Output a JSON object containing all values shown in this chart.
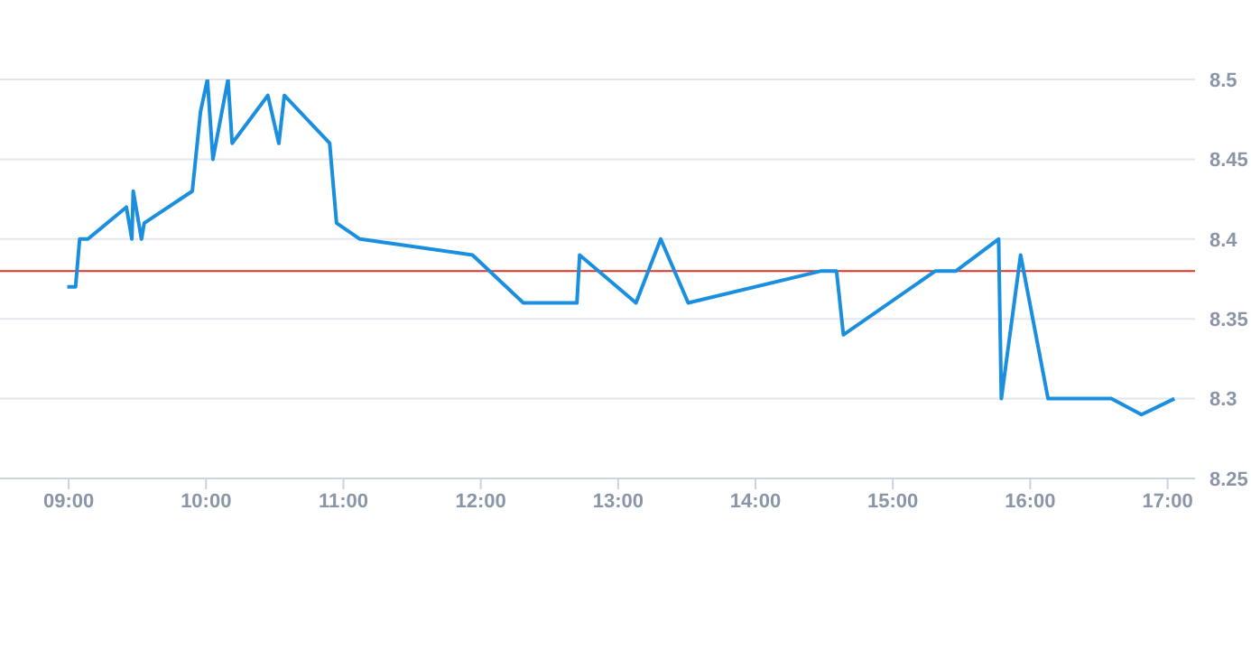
{
  "chart_data": {
    "type": "line",
    "x": [
      8.99,
      9.05,
      9.08,
      9.14,
      9.42,
      9.46,
      9.47,
      9.53,
      9.55,
      9.9,
      9.96,
      10.01,
      10.05,
      10.16,
      10.19,
      10.45,
      10.53,
      10.57,
      10.9,
      10.95,
      11.12,
      11.94,
      12.31,
      12.7,
      12.72,
      13.13,
      13.31,
      13.51,
      14.48,
      14.59,
      14.64,
      15.31,
      15.46,
      15.77,
      15.79,
      15.93,
      16.13,
      16.59,
      16.81,
      17.05
    ],
    "series": [
      {
        "color": "#1a8fdf",
        "values": [
          8.37,
          8.37,
          8.4,
          8.4,
          8.42,
          8.4,
          8.43,
          8.4,
          8.41,
          8.43,
          8.48,
          8.5,
          8.45,
          8.5,
          8.46,
          8.49,
          8.46,
          8.49,
          8.46,
          8.41,
          8.4,
          8.39,
          8.36,
          8.36,
          8.39,
          8.36,
          8.4,
          8.36,
          8.38,
          8.38,
          8.34,
          8.38,
          8.38,
          8.4,
          8.3,
          8.39,
          8.3,
          8.3,
          8.29,
          8.3
        ]
      }
    ],
    "xlim": [
      8.5,
      17.2
    ],
    "xticks": [
      {
        "value": 9,
        "label": "09:00"
      },
      {
        "value": 10,
        "label": "10:00"
      },
      {
        "value": 11,
        "label": "11:00"
      },
      {
        "value": 12,
        "label": "12:00"
      },
      {
        "value": 13,
        "label": "13:00"
      },
      {
        "value": 14,
        "label": "14:00"
      },
      {
        "value": 15,
        "label": "15:00"
      },
      {
        "value": 16,
        "label": "16:00"
      },
      {
        "value": 17,
        "label": "17:00"
      }
    ],
    "ylim": [
      8.25,
      8.5
    ],
    "yticks": [
      8.25,
      8.3,
      8.35,
      8.4,
      8.45,
      8.5
    ],
    "ref_lines": [
      {
        "axis": "y",
        "value": 8.38,
        "color": "#d9342b"
      }
    ],
    "grid": "y",
    "legend": false,
    "marker": "none",
    "line_style": "solid"
  }
}
